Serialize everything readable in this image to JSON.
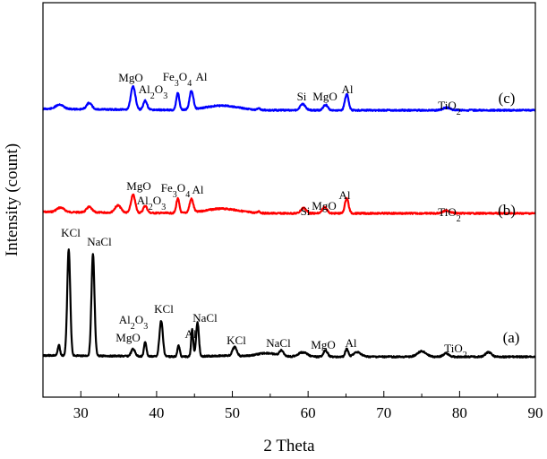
{
  "chart_data": {
    "type": "line",
    "xlabel": "2 Theta",
    "ylabel": "Intensity (count)",
    "xlim": [
      25,
      90
    ],
    "x_ticks": [
      30,
      40,
      50,
      60,
      70,
      80,
      90
    ],
    "y_ticks_shown": false,
    "grid": false,
    "series": [
      {
        "name": "(a)",
        "color": "#000000",
        "peaks": [
          {
            "x": 27.1,
            "label": ""
          },
          {
            "x": 28.4,
            "label": "KCl"
          },
          {
            "x": 31.6,
            "label": "NaCl"
          },
          {
            "x": 36.9,
            "label": "MgO"
          },
          {
            "x": 38.5,
            "label": "Al2O3"
          },
          {
            "x": 40.6,
            "label": "KCl"
          },
          {
            "x": 42.9,
            "label": ""
          },
          {
            "x": 44.7,
            "label": "Al"
          },
          {
            "x": 45.4,
            "label": "NaCl"
          },
          {
            "x": 50.3,
            "label": "KCl"
          },
          {
            "x": 56.5,
            "label": "NaCl"
          },
          {
            "x": 62.3,
            "label": "MgO"
          },
          {
            "x": 65.1,
            "label": "Al"
          },
          {
            "x": 66.5,
            "label": ""
          },
          {
            "x": 75.0,
            "label": ""
          },
          {
            "x": 78.2,
            "label": "TiO2"
          },
          {
            "x": 83.8,
            "label": ""
          }
        ]
      },
      {
        "name": "(b)",
        "color": "#ff0000",
        "peaks": [
          {
            "x": 27.3,
            "label": ""
          },
          {
            "x": 31.1,
            "label": ""
          },
          {
            "x": 34.9,
            "label": ""
          },
          {
            "x": 36.9,
            "label": "MgO"
          },
          {
            "x": 38.5,
            "label": "Al2O3"
          },
          {
            "x": 42.8,
            "label": "Fe3O4"
          },
          {
            "x": 44.6,
            "label": "Al"
          },
          {
            "x": 59.4,
            "label": "Si"
          },
          {
            "x": 62.2,
            "label": "MgO"
          },
          {
            "x": 65.1,
            "label": "Al"
          },
          {
            "x": 78.3,
            "label": "TiO2"
          }
        ]
      },
      {
        "name": "(c)",
        "color": "#0000ff",
        "peaks": [
          {
            "x": 27.2,
            "label": ""
          },
          {
            "x": 31.1,
            "label": ""
          },
          {
            "x": 36.9,
            "label": "MgO"
          },
          {
            "x": 38.5,
            "label": "Al2O3"
          },
          {
            "x": 42.8,
            "label": "Fe3O4"
          },
          {
            "x": 44.6,
            "label": "Al"
          },
          {
            "x": 59.3,
            "label": "Si"
          },
          {
            "x": 62.3,
            "label": "MgO"
          },
          {
            "x": 65.1,
            "label": "Al"
          },
          {
            "x": 78.3,
            "label": "TiO2"
          }
        ]
      }
    ]
  }
}
